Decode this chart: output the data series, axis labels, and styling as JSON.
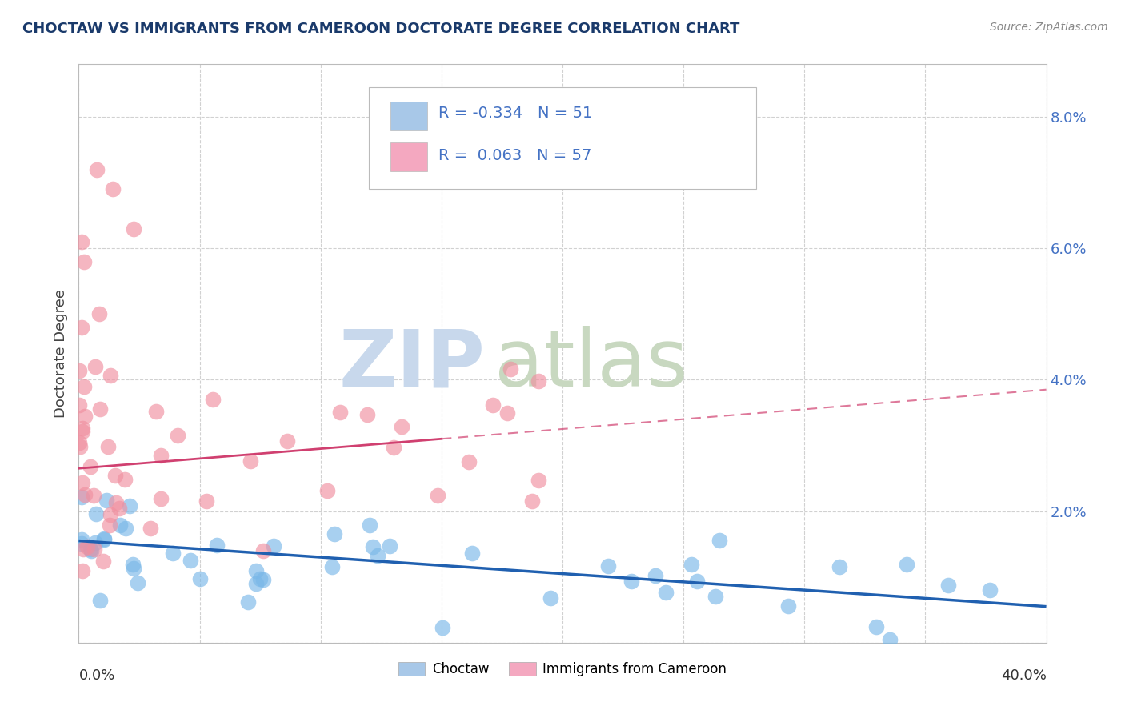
{
  "title": "CHOCTAW VS IMMIGRANTS FROM CAMEROON DOCTORATE DEGREE CORRELATION CHART",
  "source": "Source: ZipAtlas.com",
  "ylabel": "Doctorate Degree",
  "xlim": [
    0.0,
    40.0
  ],
  "ylim": [
    0.0,
    8.8
  ],
  "legend_color1": "#a8c8e8",
  "legend_color2": "#f4a8c0",
  "scatter_color1": "#7ab8e8",
  "scatter_color2": "#f090a0",
  "line_color1": "#2060b0",
  "line_color2": "#d04070",
  "text_color_blue": "#4472c4",
  "background_color": "#ffffff",
  "watermark_zip_color": "#c8d8ec",
  "watermark_atlas_color": "#c8d8c0",
  "choctaw_line_x0": 0.0,
  "choctaw_line_y0": 1.55,
  "choctaw_line_x1": 40.0,
  "choctaw_line_y1": 0.55,
  "cameroon_line_x0": 0.0,
  "cameroon_line_y0": 2.65,
  "cameroon_line_x1": 40.0,
  "cameroon_line_y1": 3.85
}
